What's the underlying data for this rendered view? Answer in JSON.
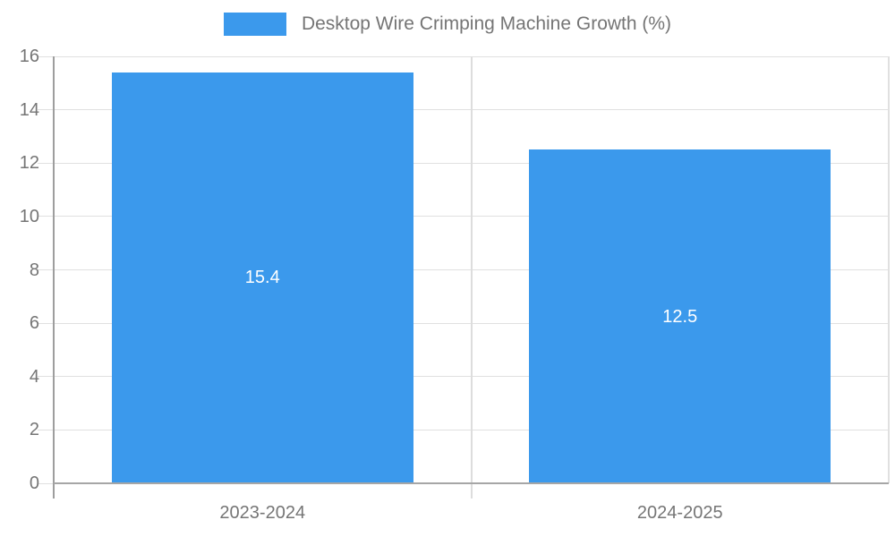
{
  "chart_data": {
    "type": "bar",
    "title": "Desktop Wire Crimping Machine Growth (%)",
    "categories": [
      "2023-2024",
      "2024-2025"
    ],
    "values": [
      15.4,
      12.5
    ],
    "value_labels": [
      "15.4",
      "12.5"
    ],
    "xlabel": "",
    "ylabel": "",
    "ylim": [
      0,
      16
    ],
    "ytick_step": 2,
    "ytick_labels": [
      "0",
      "2",
      "4",
      "6",
      "8",
      "10",
      "12",
      "14",
      "16"
    ],
    "grid": true,
    "legend_position": "top-center",
    "colors": {
      "bar": "#3b99ec",
      "axis_text": "#757575",
      "gridline": "#e0e0e0",
      "axis_line": "#9e9e9e",
      "baseline": "#a6a6a6",
      "divider": "#dddddd",
      "value_label": "#ffffff",
      "background": "#ffffff"
    }
  }
}
